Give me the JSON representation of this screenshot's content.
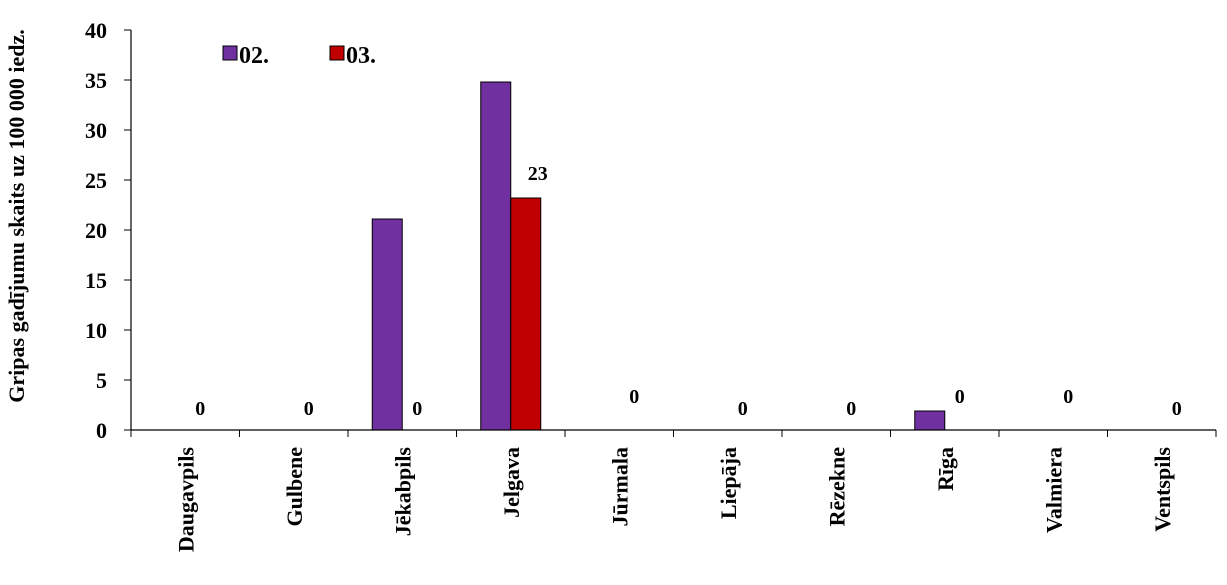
{
  "chart_data": {
    "type": "bar",
    "title": "",
    "xlabel": "",
    "ylabel": "Gripas gadījumu skaits uz 100 000 iedz.",
    "ylim": [
      0,
      40
    ],
    "yticks": [
      0,
      5,
      10,
      15,
      20,
      25,
      30,
      35,
      40
    ],
    "grid": false,
    "legend_position": "top-left",
    "categories": [
      "Daugavpils",
      "Gulbene",
      "Jēkabpils",
      "Jelgava",
      "Jūrmala",
      "Liepāja",
      "Rēzekne",
      "Rīga",
      "Valmiera",
      "Ventspils"
    ],
    "series": [
      {
        "name": "02.",
        "color": "#7030a0",
        "values": [
          0,
          0,
          21.1,
          34.8,
          0,
          0,
          0,
          1.9,
          0,
          0
        ],
        "data_labels": null
      },
      {
        "name": "03.",
        "color": "#c00000",
        "values": [
          0,
          0,
          0,
          23.2,
          0,
          0,
          0,
          0,
          0,
          0
        ],
        "data_labels": [
          "0",
          "0",
          "0",
          "23",
          "0",
          "0",
          "0",
          "0",
          "0",
          "0"
        ]
      }
    ]
  }
}
